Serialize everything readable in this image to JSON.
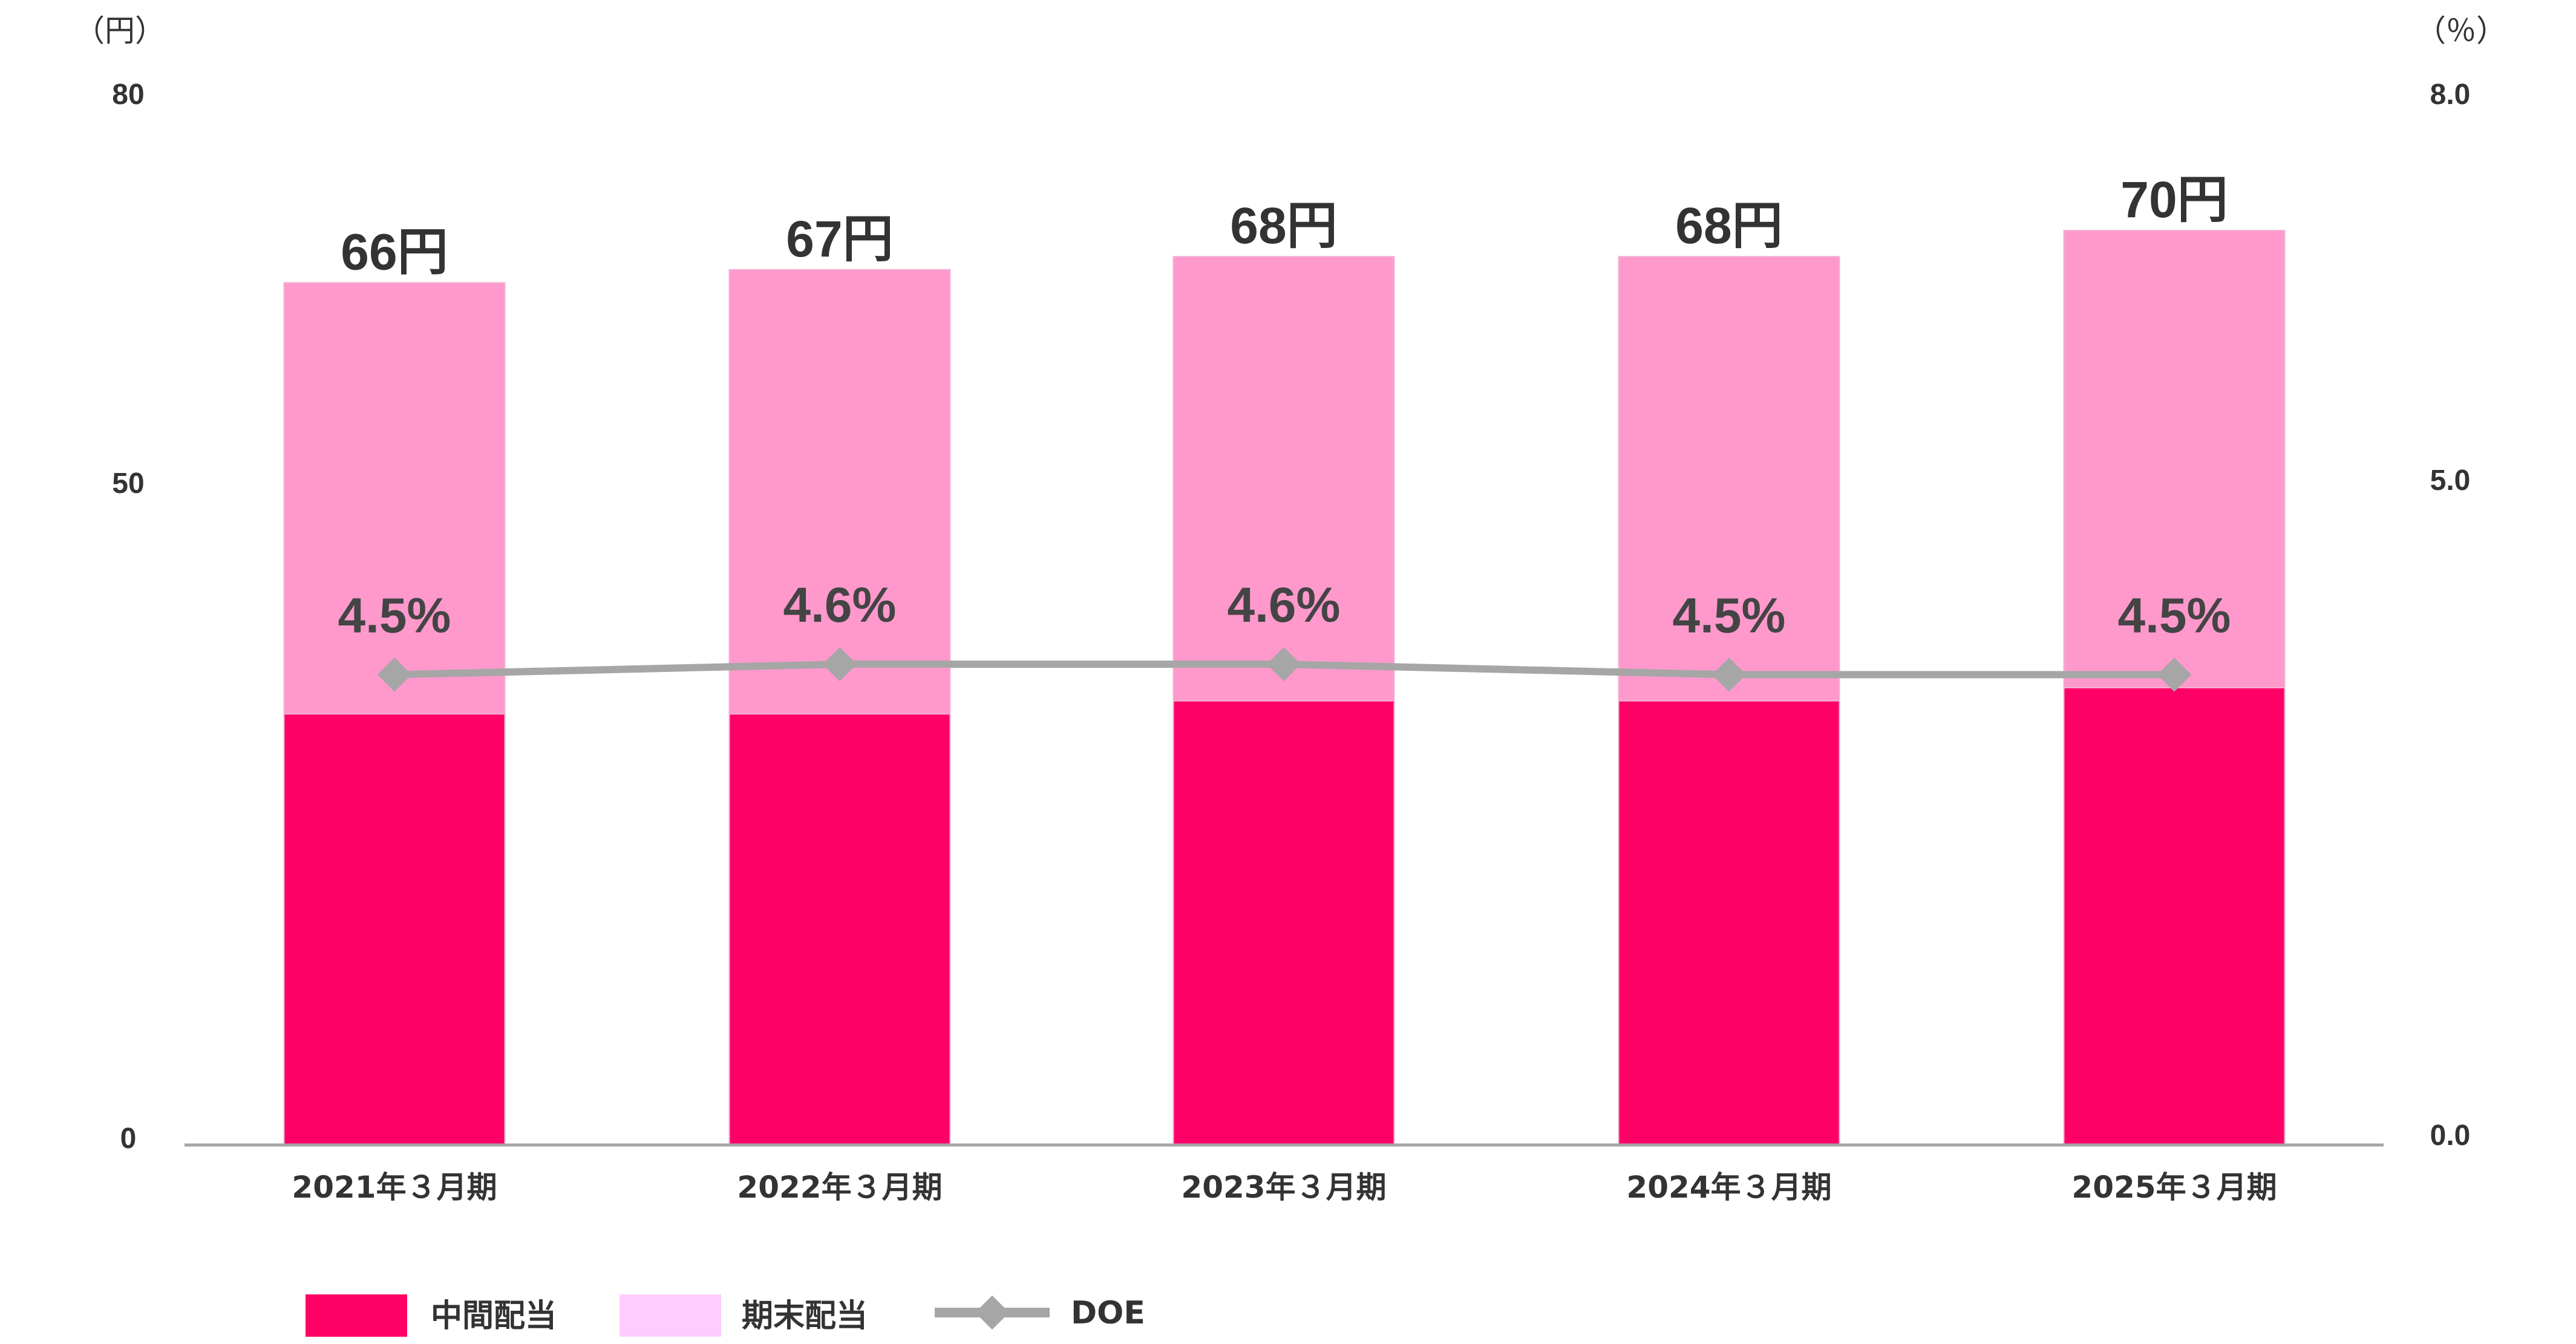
{
  "chart_data": {
    "type": "bar",
    "stacked": true,
    "categories": [
      "2021年３月期",
      "2022年３月期",
      "2023年３月期",
      "2024年３月期",
      "2025年３月期"
    ],
    "series": [
      {
        "name": "中間配当",
        "values": [
          33,
          33,
          34,
          34,
          35
        ],
        "color": "#ff0066",
        "axis": "left"
      },
      {
        "name": "期末配当",
        "values": [
          33,
          34,
          34,
          34,
          35
        ],
        "color": "#ff99cc",
        "axis": "left"
      }
    ],
    "line_series": {
      "name": "DOE",
      "values": [
        4.5,
        4.6,
        4.6,
        4.5,
        4.5
      ],
      "labels": [
        "4.5%",
        "4.6%",
        "4.6%",
        "4.5%",
        "4.5%"
      ],
      "color": "#a6a6a6",
      "marker": "diamond",
      "axis": "right"
    },
    "totals": [
      "66円",
      "67円",
      "68円",
      "68円",
      "70円"
    ],
    "left_axis": {
      "unit": "（円）",
      "ticks": [
        "0",
        "50",
        "80"
      ],
      "tick_values": [
        0,
        50,
        80
      ],
      "ylim": [
        0,
        80
      ]
    },
    "right_axis": {
      "unit": "（％）",
      "ticks": [
        "0.0",
        "5.0",
        "8.0"
      ],
      "tick_values": [
        0,
        5,
        8
      ],
      "ylim": [
        0,
        8
      ]
    },
    "legend": {
      "placement": "bottom-left",
      "items": [
        {
          "label": "中間配当",
          "color": "#ff0066",
          "kind": "box"
        },
        {
          "label": "期末配当",
          "color": "#ffccff",
          "kind": "box"
        },
        {
          "label": "DOE",
          "color": "#a6a6a6",
          "kind": "line-diamond"
        }
      ]
    },
    "grid": false
  }
}
